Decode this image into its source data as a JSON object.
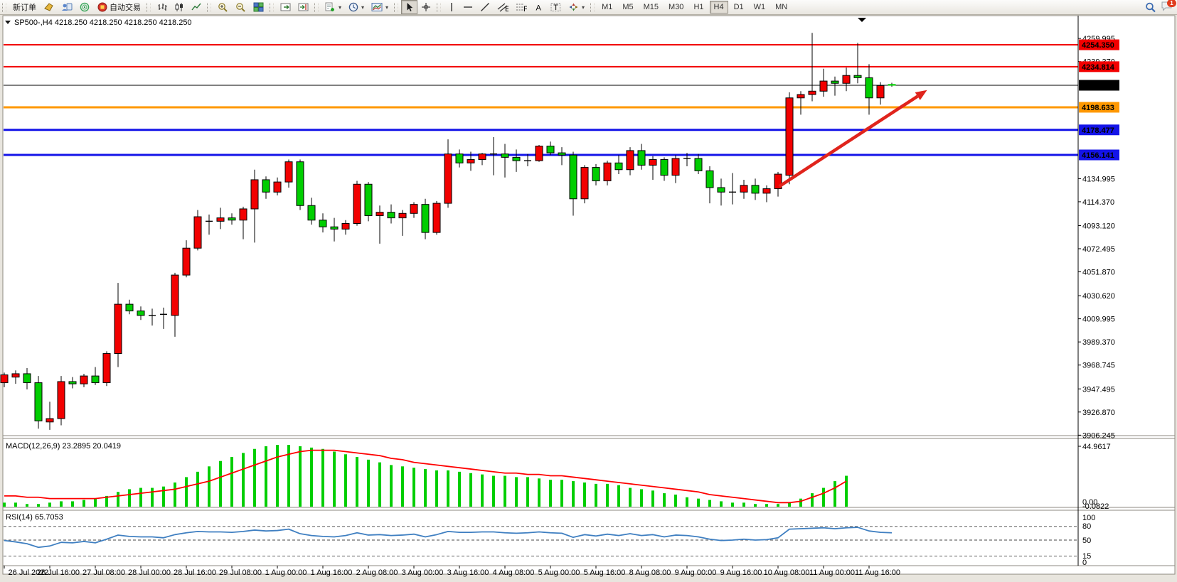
{
  "toolbar": {
    "new_order_label": "新订单",
    "auto_trading_label": "自动交易",
    "timeframes": [
      "M1",
      "M5",
      "M15",
      "M30",
      "H1",
      "H4",
      "D1",
      "W1",
      "MN"
    ],
    "active_timeframe": "H4",
    "notification_count": "1"
  },
  "chart": {
    "header": "SP500-,H4  4218.250 4218.250 4218.250 4218.250",
    "symbol": "SP500-",
    "timeframe": "H4"
  },
  "chart_data": {
    "type": "candlestick",
    "title": "SP500- H4",
    "current_price": "4218.250",
    "candles": [
      [
        3953,
        3962,
        3949,
        3960
      ],
      [
        3958,
        3964,
        3952,
        3961
      ],
      [
        3961,
        3966,
        3947,
        3953
      ],
      [
        3953,
        3959,
        3912,
        3919
      ],
      [
        3918,
        3936,
        3911,
        3921
      ],
      [
        3921,
        3959,
        3915,
        3954
      ],
      [
        3954,
        3958,
        3948,
        3952
      ],
      [
        3952,
        3961,
        3949,
        3959
      ],
      [
        3959,
        3967,
        3951,
        3953
      ],
      [
        3953,
        3981,
        3950,
        3979
      ],
      [
        3979,
        4042,
        3967,
        4023
      ],
      [
        4023,
        4027,
        4014,
        4017
      ],
      [
        4017,
        4021,
        4009,
        4013
      ],
      [
        4013,
        4019,
        4004,
        4013.3
      ],
      [
        4014,
        4020,
        4001,
        4014.3
      ],
      [
        4013,
        4051,
        3994,
        4049
      ],
      [
        4049,
        4080,
        4047,
        4073
      ],
      [
        4073,
        4107,
        4071,
        4101
      ],
      [
        4097,
        4103,
        4085,
        4097.4
      ],
      [
        4097,
        4109,
        4090,
        4100
      ],
      [
        4100,
        4104,
        4094,
        4098
      ],
      [
        4098,
        4110,
        4081,
        4108
      ],
      [
        4108,
        4143,
        4078,
        4134
      ],
      [
        4134,
        4137,
        4117,
        4123
      ],
      [
        4123,
        4136,
        4120,
        4132
      ],
      [
        4132,
        4152,
        4127,
        4150
      ],
      [
        4150,
        4152,
        4107,
        4111
      ],
      [
        4111,
        4118,
        4094,
        4098
      ],
      [
        4098,
        4104,
        4087,
        4092
      ],
      [
        4092,
        4100,
        4079,
        4090
      ],
      [
        4090,
        4098,
        4085,
        4095
      ],
      [
        4095,
        4133,
        4093,
        4130
      ],
      [
        4130,
        4132,
        4097,
        4102
      ],
      [
        4102,
        4111,
        4077,
        4105
      ],
      [
        4105,
        4112,
        4095,
        4100
      ],
      [
        4100,
        4107,
        4084,
        4104
      ],
      [
        4104,
        4114,
        4100,
        4112
      ],
      [
        4112,
        4117,
        4081,
        4087
      ],
      [
        4087,
        4115,
        4085,
        4113
      ],
      [
        4113,
        4170,
        4109,
        4157
      ],
      [
        4157,
        4161,
        4145,
        4149
      ],
      [
        4149,
        4159,
        4142,
        4152
      ],
      [
        4152,
        4158,
        4147,
        4157
      ],
      [
        4157,
        4172,
        4138,
        4157.3
      ],
      [
        4157,
        4166,
        4136,
        4154
      ],
      [
        4154,
        4161,
        4141,
        4151
      ],
      [
        4151,
        4157,
        4146,
        4151.3
      ],
      [
        4151,
        4165,
        4150,
        4164
      ],
      [
        4164,
        4168,
        4156,
        4158
      ],
      [
        4158,
        4163,
        4147,
        4156
      ],
      [
        4156,
        4159,
        4102,
        4117
      ],
      [
        4117,
        4147,
        4113,
        4145
      ],
      [
        4145,
        4148,
        4129,
        4133
      ],
      [
        4133,
        4151,
        4129,
        4149
      ],
      [
        4149,
        4156,
        4139,
        4143
      ],
      [
        4143,
        4163,
        4138,
        4160
      ],
      [
        4160,
        4166,
        4143,
        4147
      ],
      [
        4147,
        4155,
        4134,
        4152
      ],
      [
        4152,
        4154,
        4133,
        4138
      ],
      [
        4138,
        4156,
        4131,
        4153
      ],
      [
        4153,
        4158,
        4146,
        4153.3
      ],
      [
        4153,
        4157,
        4139,
        4142
      ],
      [
        4142,
        4146,
        4113,
        4127
      ],
      [
        4127,
        4135,
        4111,
        4123
      ],
      [
        4123,
        4140,
        4112,
        4123.4
      ],
      [
        4123,
        4134,
        4117,
        4129
      ],
      [
        4129,
        4135,
        4116,
        4122
      ],
      [
        4122,
        4129,
        4114,
        4126
      ],
      [
        4126,
        4141,
        4119,
        4139
      ],
      [
        4138,
        4212,
        4130,
        4207
      ],
      [
        4207,
        4213,
        4192,
        4210
      ],
      [
        4210,
        4265,
        4204,
        4213
      ],
      [
        4213,
        4233,
        4208,
        4222
      ],
      [
        4222,
        4226,
        4209,
        4220
      ],
      [
        4220,
        4234,
        4213,
        4227
      ],
      [
        4227,
        4256,
        4220,
        4225
      ],
      [
        4225,
        4237,
        4192,
        4207
      ],
      [
        4207,
        4221,
        4201,
        4218
      ],
      [
        4219,
        4220.5,
        4217,
        4218.25
      ]
    ],
    "hlines": [
      {
        "price": 4254.35,
        "label": "4254.350",
        "color": "#f20000",
        "width": 2
      },
      {
        "price": 4234.814,
        "label": "4234.814",
        "color": "#f20000",
        "width": 2
      },
      {
        "price": 4218.25,
        "label": "4218.250",
        "color": "#000000",
        "width": 1
      },
      {
        "price": 4198.633,
        "label": "4198.633",
        "color": "#ff9800",
        "width": 3
      },
      {
        "price": 4178.477,
        "label": "4178.477",
        "color": "#1414e8",
        "width": 3
      },
      {
        "price": 4156.141,
        "label": "4156.141",
        "color": "#1414e8",
        "width": 3
      }
    ],
    "y_axis_ticks": [
      "4259.995",
      "4239.370",
      "4134.995",
      "4114.370",
      "4093.120",
      "4072.495",
      "4051.870",
      "4030.620",
      "4009.995",
      "3989.370",
      "3968.745",
      "3947.495",
      "3926.870",
      "3906.245"
    ],
    "x_axis_labels": [
      "26 Jul 2022",
      "26 Jul 16:00",
      "27 Jul 08:00",
      "28 Jul 00:00",
      "28 Jul 16:00",
      "29 Jul 08:00",
      "1 Aug 00:00",
      "1 Aug 16:00",
      "2 Aug 08:00",
      "3 Aug 00:00",
      "3 Aug 16:00",
      "4 Aug 08:00",
      "5 Aug 00:00",
      "5 Aug 16:00",
      "8 Aug 08:00",
      "9 Aug 00:00",
      "9 Aug 16:00",
      "10 Aug 08:00",
      "11 Aug 00:00",
      "11 Aug 16:00"
    ],
    "trend_arrow": {
      "from_bar": 68.1,
      "from_price": 4128,
      "to_bar": 81.1,
      "to_price": 4214
    },
    "macd": {
      "label": "MACD(12,26,9) 23.2895 20.0419",
      "axis_labels": [
        "44.9617",
        "0.00",
        "-0.0822"
      ],
      "histogram": [
        3,
        3,
        2,
        2,
        3,
        4,
        4,
        5,
        6,
        8,
        11,
        13,
        14,
        14,
        15,
        18,
        22,
        26,
        30,
        34,
        37,
        40,
        43,
        45,
        46,
        46,
        45,
        44,
        43,
        41,
        39,
        37,
        35,
        33,
        31,
        30,
        29,
        28,
        27,
        27,
        26,
        25,
        24,
        23,
        23,
        22,
        22,
        21,
        20,
        20,
        19,
        18,
        17,
        17,
        16,
        14,
        13,
        12,
        10,
        9,
        7,
        6,
        5,
        4,
        3,
        3,
        2,
        2,
        2,
        3,
        6,
        10,
        14,
        19,
        23
      ],
      "signal": [
        8,
        8,
        7,
        7,
        6,
        6,
        6,
        6,
        6,
        7,
        8,
        9,
        10,
        11,
        12,
        13,
        15,
        17,
        19,
        22,
        25,
        28,
        31,
        34,
        37,
        39,
        41,
        42,
        42,
        42,
        41,
        40,
        39,
        38,
        36,
        35,
        33,
        32,
        31,
        30,
        29,
        28,
        27,
        26,
        25,
        25,
        24,
        24,
        23,
        23,
        22,
        21,
        20,
        19,
        18,
        17,
        16,
        15,
        14,
        13,
        12,
        11,
        9,
        8,
        7,
        6,
        5,
        4,
        3,
        3,
        4,
        7,
        10,
        14,
        19
      ]
    },
    "rsi": {
      "label": "RSI(14) 65.7053",
      "axis_labels": [
        "100",
        "80",
        "50",
        "15",
        "0"
      ],
      "levels": [
        80,
        50,
        15
      ],
      "values": [
        49,
        46,
        42,
        34,
        37,
        45,
        44,
        47,
        44,
        52,
        61,
        58,
        57,
        57,
        55,
        62,
        66,
        69,
        68,
        68,
        67,
        69,
        72,
        70,
        71,
        74,
        64,
        60,
        58,
        57,
        60,
        66,
        61,
        62,
        60,
        61,
        63,
        57,
        62,
        69,
        67,
        67,
        68,
        68,
        66,
        65,
        66,
        68,
        66,
        65,
        56,
        62,
        59,
        63,
        60,
        64,
        60,
        62,
        57,
        61,
        60,
        57,
        52,
        49,
        50,
        52,
        50,
        51,
        55,
        74,
        75,
        76,
        77,
        75,
        77,
        78,
        70,
        67,
        66
      ]
    },
    "colors": {
      "bull": "#f20000",
      "bear": "#00ce00",
      "wick": "#000000",
      "macd_hist": "#00ce00",
      "macd_signal": "#ff0000",
      "rsi_line": "#3f7fc1",
      "arrow": "#e0241c"
    }
  }
}
